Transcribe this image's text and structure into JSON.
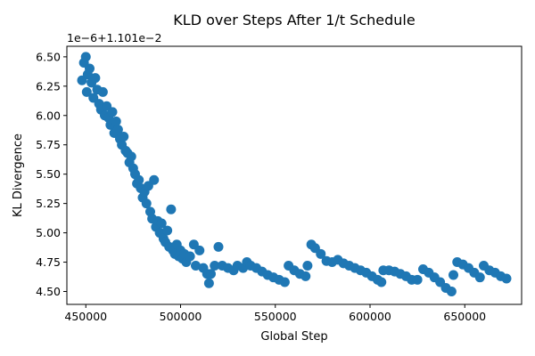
{
  "chart_data": {
    "type": "scatter",
    "title": "KLD over Steps After 1/t Schedule",
    "xlabel": "Global Step",
    "ylabel": "KL Divergence",
    "y_offset_text": "1e−6+1.101e−2",
    "y_units_note": "y values are in units of 1e-6 relative to 1.101e-2 offset",
    "xlim": [
      440000,
      680000
    ],
    "ylim": [
      4.39,
      6.59
    ],
    "xticks": [
      450000,
      500000,
      550000,
      600000,
      650000
    ],
    "xtick_labels": [
      "450000",
      "500000",
      "550000",
      "600000",
      "650000"
    ],
    "yticks": [
      4.5,
      4.75,
      5.0,
      5.25,
      5.5,
      5.75,
      6.0,
      6.25,
      6.5
    ],
    "ytick_labels": [
      "4.50",
      "4.75",
      "5.00",
      "5.25",
      "5.50",
      "5.75",
      "6.00",
      "6.25",
      "6.50"
    ],
    "grid": false,
    "marker_color": "#1f77b4",
    "series": [
      {
        "points": [
          [
            448000,
            6.3
          ],
          [
            449000,
            6.45
          ],
          [
            450000,
            6.5
          ],
          [
            450500,
            6.2
          ],
          [
            451000,
            6.35
          ],
          [
            452000,
            6.4
          ],
          [
            453000,
            6.28
          ],
          [
            454000,
            6.15
          ],
          [
            455000,
            6.32
          ],
          [
            456000,
            6.22
          ],
          [
            457000,
            6.1
          ],
          [
            458000,
            6.05
          ],
          [
            459000,
            6.2
          ],
          [
            460000,
            6.0
          ],
          [
            461000,
            6.08
          ],
          [
            462000,
            5.98
          ],
          [
            463000,
            5.92
          ],
          [
            464000,
            6.03
          ],
          [
            465000,
            5.85
          ],
          [
            466000,
            5.95
          ],
          [
            467000,
            5.88
          ],
          [
            468000,
            5.8
          ],
          [
            469000,
            5.75
          ],
          [
            470000,
            5.82
          ],
          [
            471000,
            5.7
          ],
          [
            472000,
            5.68
          ],
          [
            473000,
            5.6
          ],
          [
            474000,
            5.65
          ],
          [
            475000,
            5.55
          ],
          [
            476000,
            5.5
          ],
          [
            477000,
            5.42
          ],
          [
            478000,
            5.45
          ],
          [
            479000,
            5.38
          ],
          [
            480000,
            5.3
          ],
          [
            481000,
            5.35
          ],
          [
            482000,
            5.25
          ],
          [
            483000,
            5.4
          ],
          [
            484000,
            5.18
          ],
          [
            485000,
            5.12
          ],
          [
            486000,
            5.45
          ],
          [
            487000,
            5.05
          ],
          [
            488000,
            5.1
          ],
          [
            489000,
            5.0
          ],
          [
            490000,
            5.08
          ],
          [
            491000,
            4.95
          ],
          [
            492000,
            4.92
          ],
          [
            493000,
            5.02
          ],
          [
            494000,
            4.88
          ],
          [
            495000,
            5.2
          ],
          [
            496000,
            4.85
          ],
          [
            497000,
            4.82
          ],
          [
            498000,
            4.9
          ],
          [
            499000,
            4.8
          ],
          [
            500000,
            4.85
          ],
          [
            501000,
            4.78
          ],
          [
            502000,
            4.82
          ],
          [
            503000,
            4.75
          ],
          [
            505000,
            4.8
          ],
          [
            507000,
            4.9
          ],
          [
            508000,
            4.72
          ],
          [
            510000,
            4.85
          ],
          [
            512000,
            4.7
          ],
          [
            514000,
            4.65
          ],
          [
            515000,
            4.57
          ],
          [
            516000,
            4.65
          ],
          [
            518000,
            4.72
          ],
          [
            520000,
            4.88
          ],
          [
            522000,
            4.72
          ],
          [
            525000,
            4.7
          ],
          [
            528000,
            4.68
          ],
          [
            530000,
            4.72
          ],
          [
            533000,
            4.7
          ],
          [
            535000,
            4.75
          ],
          [
            537000,
            4.72
          ],
          [
            540000,
            4.7
          ],
          [
            543000,
            4.67
          ],
          [
            546000,
            4.64
          ],
          [
            549000,
            4.62
          ],
          [
            552000,
            4.6
          ],
          [
            555000,
            4.58
          ],
          [
            557000,
            4.72
          ],
          [
            560000,
            4.68
          ],
          [
            563000,
            4.65
          ],
          [
            566000,
            4.63
          ],
          [
            567000,
            4.72
          ],
          [
            569000,
            4.9
          ],
          [
            571000,
            4.87
          ],
          [
            574000,
            4.82
          ],
          [
            577000,
            4.76
          ],
          [
            580000,
            4.75
          ],
          [
            583000,
            4.77
          ],
          [
            586000,
            4.74
          ],
          [
            589000,
            4.72
          ],
          [
            592000,
            4.7
          ],
          [
            595000,
            4.68
          ],
          [
            598000,
            4.66
          ],
          [
            601000,
            4.63
          ],
          [
            604000,
            4.6
          ],
          [
            606000,
            4.58
          ],
          [
            607000,
            4.68
          ],
          [
            610000,
            4.68
          ],
          [
            613000,
            4.67
          ],
          [
            616000,
            4.65
          ],
          [
            619000,
            4.63
          ],
          [
            622000,
            4.6
          ],
          [
            625000,
            4.6
          ],
          [
            628000,
            4.69
          ],
          [
            631000,
            4.66
          ],
          [
            634000,
            4.62
          ],
          [
            637000,
            4.58
          ],
          [
            640000,
            4.53
          ],
          [
            643000,
            4.5
          ],
          [
            644000,
            4.64
          ],
          [
            646000,
            4.75
          ],
          [
            649000,
            4.73
          ],
          [
            652000,
            4.7
          ],
          [
            655000,
            4.66
          ],
          [
            658000,
            4.62
          ],
          [
            660000,
            4.72
          ],
          [
            663000,
            4.68
          ],
          [
            666000,
            4.66
          ],
          [
            669000,
            4.63
          ],
          [
            672000,
            4.61
          ]
        ]
      }
    ]
  }
}
